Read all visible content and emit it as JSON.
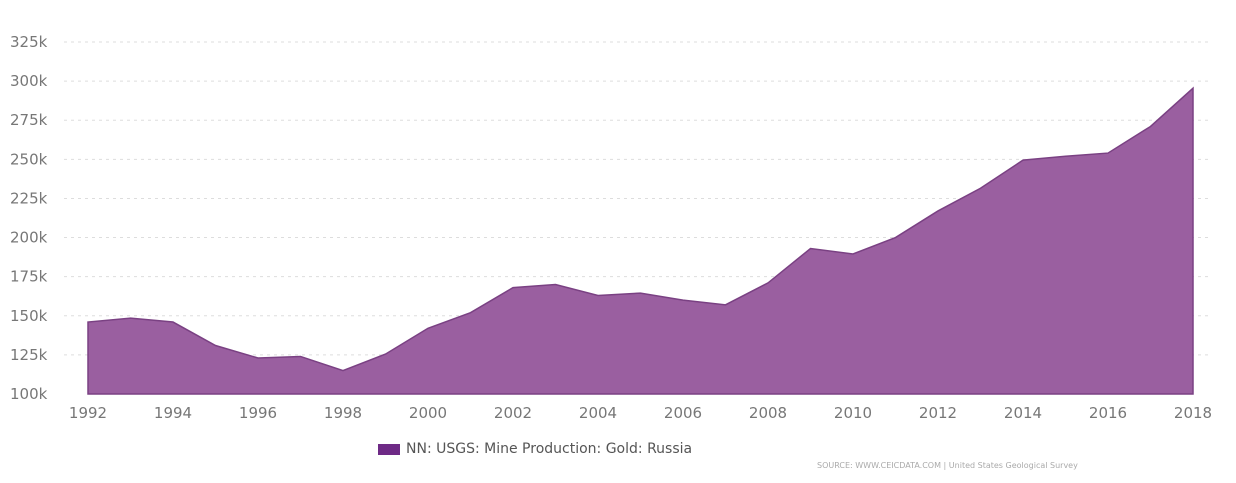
{
  "chart_data": {
    "type": "area",
    "title": "",
    "xlabel": "",
    "ylabel": "",
    "x": [
      1992,
      1993,
      1994,
      1995,
      1996,
      1997,
      1998,
      1999,
      2000,
      2001,
      2002,
      2003,
      2004,
      2005,
      2006,
      2007,
      2008,
      2009,
      2010,
      2011,
      2012,
      2013,
      2014,
      2015,
      2016,
      2017,
      2018
    ],
    "series": [
      {
        "name": "NN: USGS: Mine Production: Gold: Russia",
        "values": [
          146000,
          148500,
          146000,
          131000,
          123000,
          124000,
          115000,
          125500,
          142000,
          152000,
          168000,
          170000,
          163000,
          164500,
          160000,
          157000,
          171000,
          193000,
          189500,
          200000,
          217000,
          231500,
          249500,
          252000,
          254000,
          271000,
          295500
        ]
      }
    ],
    "ylim": [
      100000,
      325000
    ],
    "yticks": [
      100000,
      125000,
      150000,
      175000,
      200000,
      225000,
      250000,
      275000,
      300000,
      325000
    ],
    "ytick_labels": [
      "100k",
      "125k",
      "150k",
      "175k",
      "200k",
      "225k",
      "250k",
      "275k",
      "300k",
      "325k"
    ],
    "xticks": [
      1992,
      1994,
      1996,
      1998,
      2000,
      2002,
      2004,
      2006,
      2008,
      2010,
      2012,
      2014,
      2016,
      2018
    ],
    "xtick_labels": [
      "1992",
      "1994",
      "1996",
      "1998",
      "2000",
      "2002",
      "2004",
      "2006",
      "2008",
      "2010",
      "2012",
      "2014",
      "2016",
      "2018"
    ],
    "grid": true,
    "legend_position": "bottom-center",
    "color": "#9a5fa0",
    "source": "SOURCE: WWW.CEICDATA.COM | United States Geological Survey"
  }
}
